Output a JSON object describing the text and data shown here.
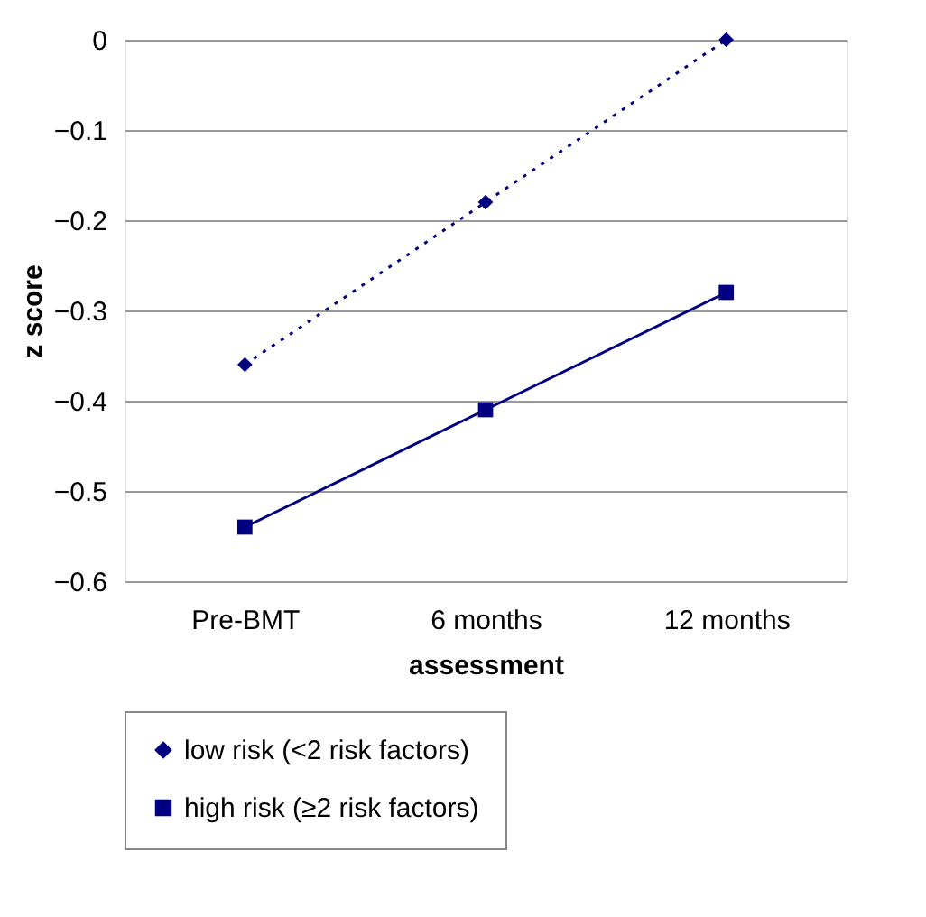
{
  "chart_data": {
    "type": "line",
    "xlabel": "assessment",
    "ylabel": "z score",
    "categories": [
      "Pre-BMT",
      "6 months",
      "12 months"
    ],
    "series": [
      {
        "name": "low risk (<2 risk factors)",
        "color": "#000080",
        "values": [
          -0.36,
          -0.18,
          0.0
        ],
        "marker": "diamond",
        "line_style": "dotted"
      },
      {
        "name": "high risk (≥2 risk factors)",
        "color": "#000080",
        "values": [
          -0.54,
          -0.41,
          -0.28
        ],
        "marker": "square",
        "line_style": "solid"
      }
    ],
    "ylim": [
      -0.6,
      0
    ],
    "yticks": [
      -0.6,
      -0.5,
      -0.4,
      -0.3,
      -0.2,
      -0.1,
      0
    ],
    "grid": "y",
    "legend": "bottom"
  }
}
